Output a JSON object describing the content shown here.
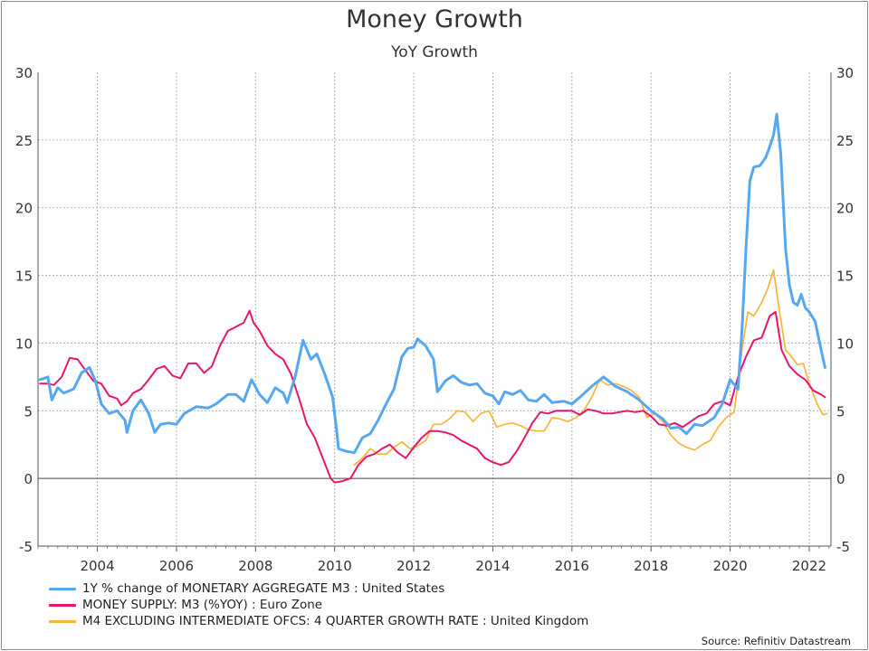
{
  "title": "Money Growth",
  "subtitle": "YoY Growth",
  "source": "Source: Refinitiv Datastream",
  "colors": {
    "us": "#55a8f0",
    "ez": "#e8166a",
    "uk": "#fbb43a",
    "grid": "#b0b0b0",
    "zero": "#444444"
  },
  "chart_data": {
    "type": "line",
    "title": "Money Growth",
    "subtitle": "YoY Growth",
    "xlim": [
      2002.5,
      2022.55
    ],
    "ylim": [
      -5,
      30
    ],
    "y_ticks": [
      -5,
      0,
      5,
      10,
      15,
      20,
      25,
      30
    ],
    "y_tick_labels": [
      "-5",
      "0",
      "5",
      "10",
      "15",
      "20",
      "25",
      "30"
    ],
    "x_ticks": [
      2004,
      2006,
      2008,
      2010,
      2012,
      2014,
      2016,
      2018,
      2020,
      2022
    ],
    "x_tick_labels": [
      "2004",
      "2006",
      "2008",
      "2010",
      "2012",
      "2014",
      "2016",
      "2018",
      "2020",
      "2022"
    ],
    "dual_y_axis": true,
    "grid": true,
    "legend_position": "bottom",
    "series": [
      {
        "name": "1Y % change of MONETARY AGGREGATE M3 : United States",
        "color": "#55a8f0",
        "points": [
          [
            2002.55,
            7.3
          ],
          [
            2002.75,
            7.5
          ],
          [
            2002.85,
            5.8
          ],
          [
            2003.0,
            6.7
          ],
          [
            2003.15,
            6.3
          ],
          [
            2003.4,
            6.6
          ],
          [
            2003.6,
            7.8
          ],
          [
            2003.8,
            8.2
          ],
          [
            2003.95,
            7.2
          ],
          [
            2004.1,
            5.5
          ],
          [
            2004.3,
            4.8
          ],
          [
            2004.5,
            5.0
          ],
          [
            2004.7,
            4.3
          ],
          [
            2004.75,
            3.4
          ],
          [
            2004.9,
            5.0
          ],
          [
            2005.1,
            5.8
          ],
          [
            2005.3,
            4.8
          ],
          [
            2005.45,
            3.4
          ],
          [
            2005.6,
            4.0
          ],
          [
            2005.8,
            4.1
          ],
          [
            2006.0,
            4.0
          ],
          [
            2006.2,
            4.8
          ],
          [
            2006.5,
            5.3
          ],
          [
            2006.8,
            5.2
          ],
          [
            2007.0,
            5.5
          ],
          [
            2007.3,
            6.2
          ],
          [
            2007.5,
            6.2
          ],
          [
            2007.7,
            5.7
          ],
          [
            2007.9,
            7.3
          ],
          [
            2008.1,
            6.2
          ],
          [
            2008.3,
            5.6
          ],
          [
            2008.5,
            6.7
          ],
          [
            2008.7,
            6.3
          ],
          [
            2008.8,
            5.6
          ],
          [
            2009.0,
            7.5
          ],
          [
            2009.2,
            10.2
          ],
          [
            2009.4,
            8.8
          ],
          [
            2009.55,
            9.2
          ],
          [
            2009.75,
            7.7
          ],
          [
            2009.95,
            6.0
          ],
          [
            2010.05,
            3.5
          ],
          [
            2010.1,
            2.2
          ],
          [
            2010.3,
            2.0
          ],
          [
            2010.5,
            1.9
          ],
          [
            2010.7,
            3.0
          ],
          [
            2010.9,
            3.3
          ],
          [
            2011.1,
            4.3
          ],
          [
            2011.3,
            5.5
          ],
          [
            2011.5,
            6.6
          ],
          [
            2011.7,
            9.0
          ],
          [
            2011.85,
            9.6
          ],
          [
            2012.0,
            9.7
          ],
          [
            2012.1,
            10.3
          ],
          [
            2012.3,
            9.8
          ],
          [
            2012.5,
            8.8
          ],
          [
            2012.6,
            6.4
          ],
          [
            2012.8,
            7.2
          ],
          [
            2013.0,
            7.6
          ],
          [
            2013.2,
            7.1
          ],
          [
            2013.4,
            6.9
          ],
          [
            2013.6,
            7.0
          ],
          [
            2013.8,
            6.3
          ],
          [
            2014.0,
            6.1
          ],
          [
            2014.15,
            5.5
          ],
          [
            2014.3,
            6.4
          ],
          [
            2014.5,
            6.2
          ],
          [
            2014.7,
            6.5
          ],
          [
            2014.9,
            5.8
          ],
          [
            2015.1,
            5.7
          ],
          [
            2015.3,
            6.2
          ],
          [
            2015.5,
            5.6
          ],
          [
            2015.8,
            5.7
          ],
          [
            2016.0,
            5.5
          ],
          [
            2016.2,
            6.0
          ],
          [
            2016.5,
            6.8
          ],
          [
            2016.8,
            7.5
          ],
          [
            2017.1,
            6.8
          ],
          [
            2017.4,
            6.4
          ],
          [
            2017.7,
            5.8
          ],
          [
            2018.0,
            5.0
          ],
          [
            2018.3,
            4.4
          ],
          [
            2018.5,
            3.7
          ],
          [
            2018.7,
            3.8
          ],
          [
            2018.9,
            3.3
          ],
          [
            2019.1,
            4.0
          ],
          [
            2019.3,
            3.9
          ],
          [
            2019.6,
            4.5
          ],
          [
            2019.8,
            5.5
          ],
          [
            2019.9,
            6.4
          ],
          [
            2020.0,
            7.3
          ],
          [
            2020.2,
            6.6
          ],
          [
            2020.3,
            11.0
          ],
          [
            2020.4,
            17.0
          ],
          [
            2020.5,
            22.0
          ],
          [
            2020.6,
            23.0
          ],
          [
            2020.75,
            23.1
          ],
          [
            2020.9,
            23.7
          ],
          [
            2021.0,
            24.5
          ],
          [
            2021.1,
            25.4
          ],
          [
            2021.18,
            26.9
          ],
          [
            2021.28,
            24.0
          ],
          [
            2021.4,
            17.0
          ],
          [
            2021.5,
            14.3
          ],
          [
            2021.6,
            13.0
          ],
          [
            2021.7,
            12.8
          ],
          [
            2021.8,
            13.6
          ],
          [
            2021.9,
            12.6
          ],
          [
            2022.0,
            12.3
          ],
          [
            2022.15,
            11.6
          ],
          [
            2022.3,
            9.5
          ],
          [
            2022.4,
            8.2
          ]
        ]
      },
      {
        "name": "MONEY SUPPLY: M3 (%YOY) : Euro Zone",
        "color": "#e8166a",
        "points": [
          [
            2002.55,
            7.0
          ],
          [
            2002.75,
            7.0
          ],
          [
            2002.9,
            6.9
          ],
          [
            2003.1,
            7.5
          ],
          [
            2003.3,
            8.9
          ],
          [
            2003.5,
            8.8
          ],
          [
            2003.7,
            8.0
          ],
          [
            2003.9,
            7.2
          ],
          [
            2004.1,
            7.0
          ],
          [
            2004.3,
            6.1
          ],
          [
            2004.5,
            5.9
          ],
          [
            2004.6,
            5.4
          ],
          [
            2004.75,
            5.7
          ],
          [
            2004.9,
            6.3
          ],
          [
            2005.1,
            6.6
          ],
          [
            2005.3,
            7.3
          ],
          [
            2005.5,
            8.1
          ],
          [
            2005.7,
            8.3
          ],
          [
            2005.9,
            7.6
          ],
          [
            2006.1,
            7.4
          ],
          [
            2006.3,
            8.5
          ],
          [
            2006.5,
            8.5
          ],
          [
            2006.7,
            7.8
          ],
          [
            2006.9,
            8.3
          ],
          [
            2007.1,
            9.8
          ],
          [
            2007.3,
            10.9
          ],
          [
            2007.5,
            11.2
          ],
          [
            2007.7,
            11.5
          ],
          [
            2007.85,
            12.4
          ],
          [
            2007.95,
            11.5
          ],
          [
            2008.1,
            10.9
          ],
          [
            2008.3,
            9.8
          ],
          [
            2008.5,
            9.2
          ],
          [
            2008.7,
            8.8
          ],
          [
            2008.9,
            7.7
          ],
          [
            2009.1,
            5.9
          ],
          [
            2009.3,
            4.0
          ],
          [
            2009.5,
            3.0
          ],
          [
            2009.7,
            1.5
          ],
          [
            2009.9,
            0.0
          ],
          [
            2010.0,
            -0.3
          ],
          [
            2010.2,
            -0.2
          ],
          [
            2010.4,
            0.0
          ],
          [
            2010.6,
            1.0
          ],
          [
            2010.8,
            1.6
          ],
          [
            2011.0,
            1.8
          ],
          [
            2011.2,
            2.2
          ],
          [
            2011.4,
            2.5
          ],
          [
            2011.6,
            1.9
          ],
          [
            2011.8,
            1.5
          ],
          [
            2012.0,
            2.3
          ],
          [
            2012.2,
            3.0
          ],
          [
            2012.4,
            3.5
          ],
          [
            2012.6,
            3.5
          ],
          [
            2012.8,
            3.4
          ],
          [
            2013.0,
            3.2
          ],
          [
            2013.2,
            2.8
          ],
          [
            2013.4,
            2.5
          ],
          [
            2013.6,
            2.2
          ],
          [
            2013.8,
            1.5
          ],
          [
            2014.0,
            1.2
          ],
          [
            2014.2,
            1.0
          ],
          [
            2014.4,
            1.2
          ],
          [
            2014.6,
            2.0
          ],
          [
            2014.8,
            3.0
          ],
          [
            2015.0,
            4.1
          ],
          [
            2015.2,
            4.9
          ],
          [
            2015.4,
            4.8
          ],
          [
            2015.6,
            5.0
          ],
          [
            2015.8,
            5.0
          ],
          [
            2016.0,
            5.0
          ],
          [
            2016.2,
            4.7
          ],
          [
            2016.4,
            5.1
          ],
          [
            2016.6,
            5.0
          ],
          [
            2016.8,
            4.8
          ],
          [
            2017.0,
            4.8
          ],
          [
            2017.2,
            4.9
          ],
          [
            2017.4,
            5.0
          ],
          [
            2017.6,
            4.9
          ],
          [
            2017.8,
            5.0
          ],
          [
            2018.0,
            4.6
          ],
          [
            2018.2,
            4.0
          ],
          [
            2018.4,
            3.9
          ],
          [
            2018.6,
            4.1
          ],
          [
            2018.8,
            3.8
          ],
          [
            2019.0,
            4.2
          ],
          [
            2019.2,
            4.6
          ],
          [
            2019.4,
            4.8
          ],
          [
            2019.6,
            5.5
          ],
          [
            2019.8,
            5.7
          ],
          [
            2020.0,
            5.4
          ],
          [
            2020.2,
            7.5
          ],
          [
            2020.4,
            9.0
          ],
          [
            2020.6,
            10.2
          ],
          [
            2020.8,
            10.4
          ],
          [
            2021.0,
            12.0
          ],
          [
            2021.15,
            12.3
          ],
          [
            2021.3,
            9.5
          ],
          [
            2021.5,
            8.3
          ],
          [
            2021.7,
            7.7
          ],
          [
            2021.9,
            7.3
          ],
          [
            2022.1,
            6.5
          ],
          [
            2022.3,
            6.2
          ],
          [
            2022.4,
            6.0
          ]
        ]
      },
      {
        "name": "M4 EXCLUDING INTERMEDIATE OFCS: 4 QUARTER GROWTH RATE : United Kingdom",
        "color": "#fbb43a",
        "points": [
          [
            2010.5,
            1.0
          ],
          [
            2010.7,
            1.5
          ],
          [
            2010.9,
            2.2
          ],
          [
            2011.1,
            1.8
          ],
          [
            2011.3,
            1.8
          ],
          [
            2011.5,
            2.3
          ],
          [
            2011.7,
            2.7
          ],
          [
            2011.9,
            2.2
          ],
          [
            2012.1,
            2.4
          ],
          [
            2012.3,
            2.8
          ],
          [
            2012.5,
            4.0
          ],
          [
            2012.7,
            4.0
          ],
          [
            2012.9,
            4.4
          ],
          [
            2013.1,
            5.0
          ],
          [
            2013.3,
            4.9
          ],
          [
            2013.5,
            4.2
          ],
          [
            2013.7,
            4.8
          ],
          [
            2013.9,
            5.0
          ],
          [
            2014.1,
            3.8
          ],
          [
            2014.3,
            4.0
          ],
          [
            2014.5,
            4.1
          ],
          [
            2014.7,
            3.9
          ],
          [
            2014.9,
            3.6
          ],
          [
            2015.1,
            3.5
          ],
          [
            2015.3,
            3.5
          ],
          [
            2015.5,
            4.5
          ],
          [
            2015.7,
            4.4
          ],
          [
            2015.9,
            4.2
          ],
          [
            2016.1,
            4.5
          ],
          [
            2016.3,
            5.0
          ],
          [
            2016.5,
            6.0
          ],
          [
            2016.7,
            7.3
          ],
          [
            2016.9,
            6.9
          ],
          [
            2017.1,
            7.0
          ],
          [
            2017.3,
            6.8
          ],
          [
            2017.5,
            6.5
          ],
          [
            2017.7,
            6.0
          ],
          [
            2017.9,
            4.5
          ],
          [
            2018.1,
            4.8
          ],
          [
            2018.3,
            4.2
          ],
          [
            2018.5,
            3.2
          ],
          [
            2018.7,
            2.6
          ],
          [
            2018.9,
            2.3
          ],
          [
            2019.1,
            2.1
          ],
          [
            2019.3,
            2.5
          ],
          [
            2019.5,
            2.8
          ],
          [
            2019.7,
            3.8
          ],
          [
            2019.9,
            4.5
          ],
          [
            2020.1,
            4.9
          ],
          [
            2020.3,
            9.5
          ],
          [
            2020.45,
            12.3
          ],
          [
            2020.6,
            12.0
          ],
          [
            2020.8,
            13.0
          ],
          [
            2020.95,
            14.0
          ],
          [
            2021.1,
            15.4
          ],
          [
            2021.25,
            12.3
          ],
          [
            2021.4,
            9.5
          ],
          [
            2021.55,
            9.0
          ],
          [
            2021.7,
            8.4
          ],
          [
            2021.85,
            8.5
          ],
          [
            2022.0,
            7.0
          ],
          [
            2022.2,
            5.5
          ],
          [
            2022.35,
            4.7
          ],
          [
            2022.45,
            4.8
          ]
        ]
      }
    ]
  },
  "legend": {
    "items": [
      {
        "label": "1Y % change of MONETARY AGGREGATE M3 : United States",
        "color": "#55a8f0"
      },
      {
        "label": "MONEY SUPPLY: M3 (%YOY) : Euro Zone",
        "color": "#e8166a"
      },
      {
        "label": "M4 EXCLUDING INTERMEDIATE OFCS: 4 QUARTER GROWTH RATE : United Kingdom",
        "color": "#fbb43a"
      }
    ]
  }
}
